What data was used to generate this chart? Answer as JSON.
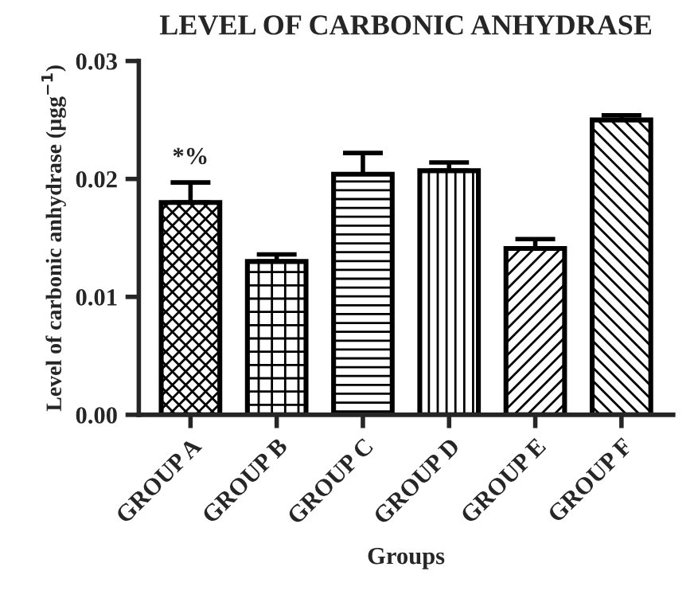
{
  "chart_data": {
    "type": "bar",
    "title": "LEVEL OF CARBONIC ANHYDRASE",
    "xlabel": "Groups",
    "ylabel": "Level of carbonic anhydrase (µgg$^{−1}$)",
    "categories": [
      "GROUP A",
      "GROUP B",
      "GROUP C",
      "GROUP D",
      "GROUP E",
      "GROUP F"
    ],
    "values": [
      0.018,
      0.013,
      0.0204,
      0.0207,
      0.0141,
      0.025
    ],
    "errors": [
      [
        0.018,
        0.0197
      ],
      [
        0.013,
        0.0136
      ],
      [
        0.0204,
        0.0222
      ],
      [
        0.0207,
        0.0214
      ],
      [
        0.0141,
        0.0149
      ],
      [
        0.025,
        0.0254
      ]
    ],
    "ylim": [
      0,
      0.03
    ],
    "yticks": [
      {
        "value": 0,
        "label": "0.00"
      },
      {
        "value": 0.01,
        "label": "0.01"
      },
      {
        "value": 0.02,
        "label": "0.02"
      },
      {
        "value": 0.03,
        "label": "0.03"
      }
    ],
    "annotations": [
      "*%"
    ],
    "grid": false
  }
}
